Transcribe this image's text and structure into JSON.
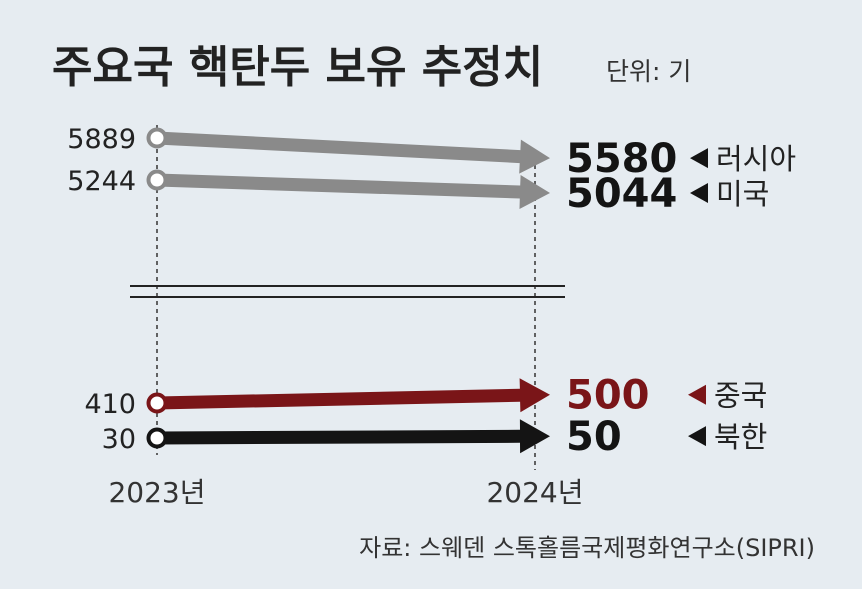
{
  "header": {
    "title": "주요국 핵탄두 보유 추정치",
    "unit": "단위: 기"
  },
  "footer": {
    "source": "자료: 스웨덴 스톡홀름국제평화연구소(SIPRI)"
  },
  "colors": {
    "background": "#e6ecf1",
    "russia": "#8a8a8a",
    "usa": "#8a8a8a",
    "china": "#7a1518",
    "north_korea": "#141414"
  },
  "chart_data": {
    "type": "slope",
    "title": "주요국 핵탄두 보유 추정치",
    "unit": "단위: 기",
    "x": [
      "2023년",
      "2024년"
    ],
    "axis_break": true,
    "series": [
      {
        "name": "러시아",
        "values": [
          5889,
          5580
        ],
        "color": "#8a8a8a",
        "group": "upper"
      },
      {
        "name": "미국",
        "values": [
          5244,
          5044
        ],
        "color": "#8a8a8a",
        "group": "upper"
      },
      {
        "name": "중국",
        "values": [
          410,
          500
        ],
        "color": "#7a1518",
        "group": "lower"
      },
      {
        "name": "북한",
        "values": [
          30,
          50
        ],
        "color": "#141414",
        "group": "lower"
      }
    ]
  }
}
